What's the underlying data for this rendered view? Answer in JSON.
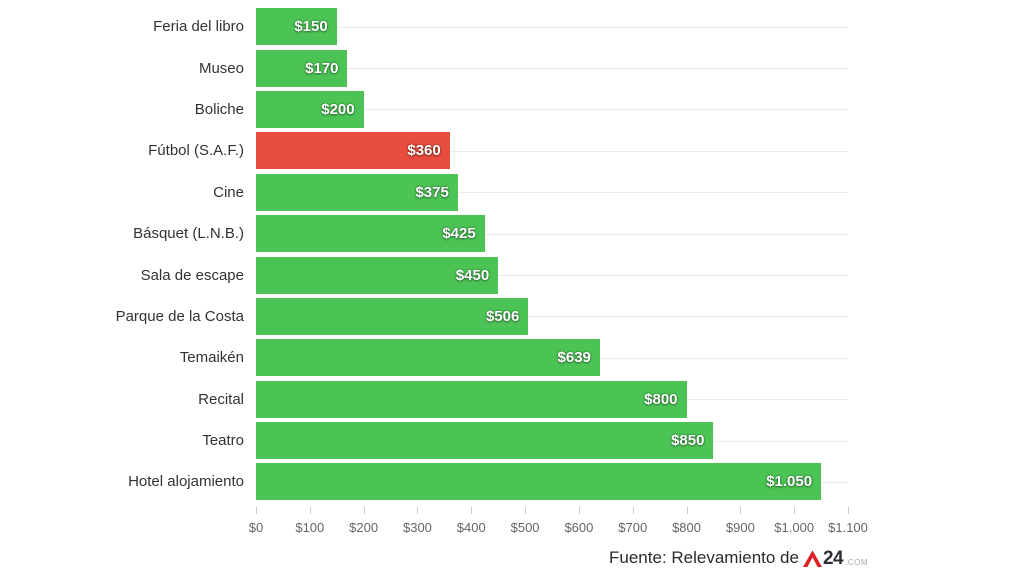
{
  "chart_data": {
    "type": "bar",
    "orientation": "horizontal",
    "title": "",
    "xlabel": "",
    "ylabel": "",
    "categories": [
      "Feria del libro",
      "Museo",
      "Boliche",
      "Fútbol (S.A.F.)",
      "Cine",
      "Básquet (L.N.B.)",
      "Sala de escape",
      "Parque de la Costa",
      "Temaikén",
      "Recital",
      "Teatro",
      "Hotel alojamiento"
    ],
    "values": [
      150,
      170,
      200,
      360,
      375,
      425,
      450,
      506,
      639,
      800,
      850,
      1050
    ],
    "value_labels": [
      "$150",
      "$170",
      "$200",
      "$360",
      "$375",
      "$425",
      "$450",
      "$506",
      "$639",
      "$800",
      "$850",
      "$1.050"
    ],
    "highlight_index": 3,
    "xlim": [
      0,
      1100
    ],
    "x_tick_values": [
      0,
      100,
      200,
      300,
      400,
      500,
      600,
      700,
      800,
      900,
      1000,
      1100
    ],
    "x_tick_labels": [
      "$0",
      "$100",
      "$200",
      "$300",
      "$400",
      "$500",
      "$600",
      "$700",
      "$800",
      "$900",
      "$1.000",
      "$1.100"
    ],
    "grid": "horizontal lines at each category center",
    "legend": "none"
  },
  "colors": {
    "bar_green": "#4cc355",
    "bar_red": "#e74c3c",
    "grid_line": "#ececec",
    "tick_mark": "#cccccc",
    "axis_text": "#666666",
    "category_text": "#333333",
    "value_text": "#ffffff",
    "source_text": "#2b2b2b",
    "logo_red": "#e01e26",
    "logo_dark": "#2f2f38",
    "logo_gray": "#a9a9a9"
  },
  "footer": {
    "source_text": "Fuente: Relevamiento de",
    "logo_number": "24",
    "logo_tld": ".COM"
  }
}
